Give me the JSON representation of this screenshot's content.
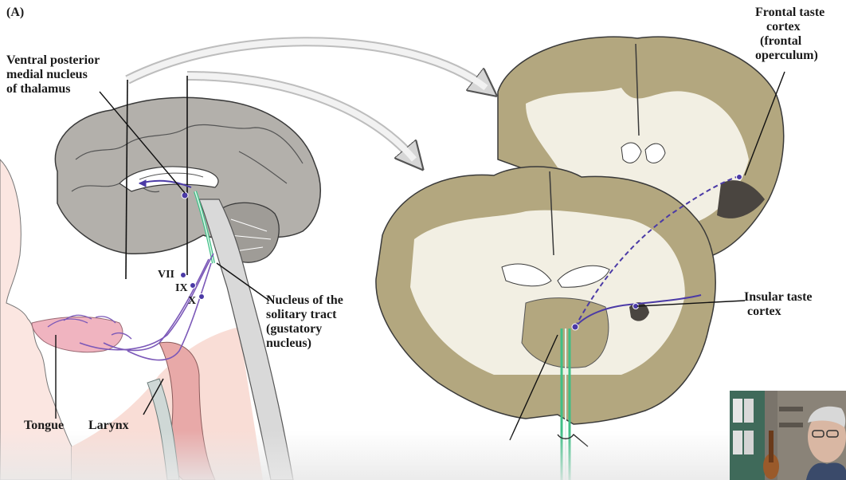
{
  "panel": {
    "label": "(A)"
  },
  "labels": {
    "vpm": [
      "Ventral posterior",
      "medial nucleus",
      "of thalamus"
    ],
    "frontal": [
      "Frontal taste",
      "cortex",
      "(frontal",
      "operculum)"
    ],
    "insular": [
      "Insular taste",
      "cortex"
    ],
    "solitary": [
      "Nucleus of the",
      "solitary tract",
      "(gustatory",
      "nucleus)"
    ],
    "tongue": "Tongue",
    "larynx": "Larynx"
  },
  "nerves": [
    "VII",
    "IX",
    "X"
  ],
  "colors": {
    "brain_gray": "#b3b0ab",
    "brain_outline": "#3a3a3a",
    "gray_matter": "#b3a77f",
    "white_matter": "#f2efe3",
    "skin": "#fbe6e1",
    "tongue": "#f0b4c0",
    "pathway_purple": "#4b3aa6",
    "tract_green": "#3fbf86"
  },
  "webcam": {
    "description_icon": "presenter-video-icon"
  }
}
